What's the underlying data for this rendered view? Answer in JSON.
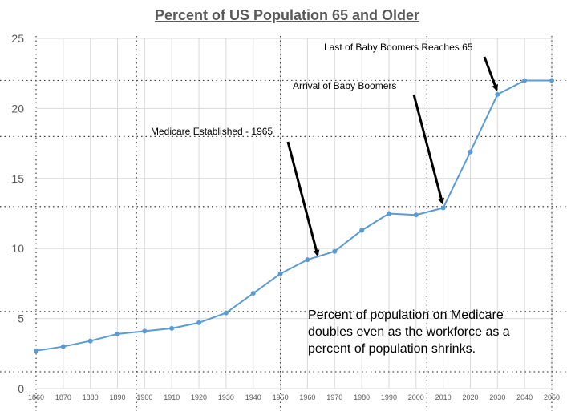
{
  "chart_data": {
    "type": "line",
    "title": "Percent of US Population 65 and Older",
    "xlabel": "",
    "ylabel": "",
    "x": [
      1860,
      1870,
      1880,
      1890,
      1900,
      1910,
      1920,
      1930,
      1940,
      1950,
      1960,
      1970,
      1980,
      1990,
      2000,
      2010,
      2020,
      2030,
      2040,
      2050
    ],
    "y_ticks": [
      0,
      5,
      10,
      15,
      20,
      25
    ],
    "ylim": [
      0,
      25
    ],
    "grid": true,
    "series": [
      {
        "values": [
          2.7,
          3.0,
          3.4,
          3.9,
          4.1,
          4.3,
          4.7,
          5.4,
          6.8,
          8.2,
          9.2,
          9.8,
          11.3,
          12.5,
          12.4,
          12.9,
          16.9,
          21.0,
          22.0,
          22.0
        ],
        "color": "#5b9bd5"
      }
    ],
    "annotations": [
      {
        "text": "Medicare Established - 1965",
        "points_to_x": 1964,
        "points_to_y": 9.2
      },
      {
        "text": "Arrival of Baby Boomers",
        "points_to_x": 2010,
        "points_to_y": 12.9
      },
      {
        "text": "Last of Baby Boomers Reaches 65",
        "points_to_x": 2030,
        "points_to_y": 21.0
      }
    ],
    "note_lines": [
      "Percent of population on Medicare",
      "doubles even as the workforce as a",
      "percent of population shrinks."
    ]
  }
}
